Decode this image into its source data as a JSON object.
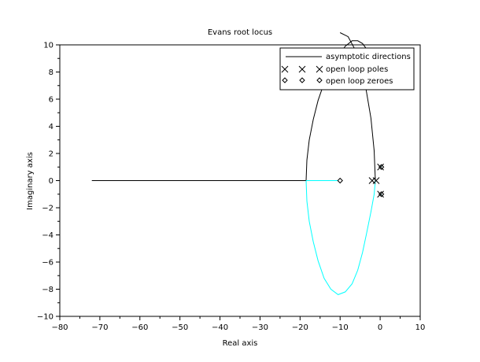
{
  "chart_data": {
    "type": "line",
    "title": "Evans root locus",
    "xlabel": "Real axis",
    "ylabel": "Imaginary axis",
    "xlim": [
      -80,
      10
    ],
    "ylim": [
      -10,
      10
    ],
    "xticks": [
      -80,
      -70,
      -60,
      -50,
      -40,
      -30,
      -20,
      -10,
      0,
      10
    ],
    "yticks": [
      -10,
      -8,
      -6,
      -4,
      -2,
      0,
      2,
      4,
      6,
      8,
      10
    ],
    "xtick_labels": [
      "−80",
      "−70",
      "−60",
      "−50",
      "−40",
      "−30",
      "−20",
      "−10",
      "0",
      "10"
    ],
    "ytick_labels": [
      "−10",
      "−8",
      "−6",
      "−4",
      "−2",
      "0",
      "2",
      "4",
      "6",
      "8",
      "10"
    ],
    "grid": false,
    "legend_position": "top-right",
    "legend": [
      {
        "label": "asymptotic directions",
        "marker": "line"
      },
      {
        "label": "open loop poles",
        "marker": "x"
      },
      {
        "label": "open loop zeroes",
        "marker": "diamond"
      }
    ],
    "series": [
      {
        "color": "#000000",
        "x": [
          -72,
          -18.5
        ],
        "y": [
          0,
          0
        ]
      },
      {
        "color": "#000000",
        "x": [
          -18.5,
          -18.3,
          -17.7,
          -16.7,
          -15.5,
          -14.0,
          -12.3,
          -10.5,
          -8.7,
          -7.0,
          -5.6,
          -4.4,
          -3.4
        ],
        "y": [
          0,
          1.5,
          3.0,
          4.5,
          5.9,
          7.2,
          8.3,
          9.2,
          9.9,
          10.3,
          10.3,
          10.1,
          9.7
        ]
      },
      {
        "color": "#000000",
        "x": [
          -10.0,
          -8.0,
          -5.8,
          -3.8,
          -2.3,
          -1.5,
          -1.2
        ],
        "y": [
          10.9,
          10.6,
          9.4,
          7.2,
          4.6,
          2.2,
          0
        ]
      },
      {
        "color": "#00ffff",
        "x": [
          -18.5,
          -10.5
        ],
        "y": [
          0,
          0
        ]
      },
      {
        "color": "#00ffff",
        "x": [
          -18.5,
          -18.3,
          -17.7,
          -16.7,
          -15.5,
          -14.0,
          -12.3,
          -10.5,
          -8.7,
          -7.0,
          -5.6,
          -4.4,
          -3.4,
          -2.3,
          -1.5,
          -1.2
        ],
        "y": [
          0,
          -1.5,
          -3.0,
          -4.5,
          -5.9,
          -7.2,
          -8.0,
          -8.4,
          -8.2,
          -7.6,
          -6.6,
          -5.3,
          -3.9,
          -2.3,
          -1.0,
          0
        ]
      },
      {
        "color": "#00ffff",
        "x": [
          0.2,
          0.4
        ],
        "y": [
          1.0,
          1.1
        ]
      },
      {
        "color": "#00ffff",
        "x": [
          0.2,
          0.4
        ],
        "y": [
          -1.0,
          -1.1
        ]
      }
    ],
    "poles": [
      {
        "x": -2.0,
        "y": 0
      },
      {
        "x": -1.0,
        "y": 0
      },
      {
        "x": 0.1,
        "y": 1.0
      },
      {
        "x": 0.1,
        "y": -1.0
      }
    ],
    "zeroes": [
      {
        "x": -10.0,
        "y": 0
      },
      {
        "x": 0.3,
        "y": 1.0
      },
      {
        "x": 0.3,
        "y": -1.0
      }
    ]
  }
}
